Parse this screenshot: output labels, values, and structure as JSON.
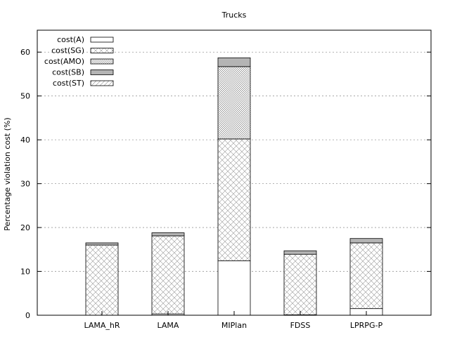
{
  "chart_data": {
    "type": "bar",
    "stacked": true,
    "title": "Trucks",
    "xlabel": "",
    "ylabel": "Percentage violation cost (%)",
    "ylim": [
      0,
      65
    ],
    "yticks": [
      0,
      10,
      20,
      30,
      40,
      50,
      60
    ],
    "grid": "horizontal dotted",
    "legend_position": "top-left",
    "categories": [
      "LAMA_hR",
      "LAMA",
      "MIPlan",
      "FDSS",
      "LPRPG-P"
    ],
    "series": [
      {
        "name": "cost(A)",
        "pattern": "blank",
        "values": [
          0.0,
          0.3,
          12.4,
          0.1,
          1.5
        ]
      },
      {
        "name": "cost(SG)",
        "pattern": "crosshatch",
        "values": [
          16.0,
          17.8,
          27.8,
          13.8,
          15.0
        ]
      },
      {
        "name": "cost(AMO)",
        "pattern": "finedots",
        "values": [
          0.0,
          0.0,
          16.5,
          0.0,
          0.0
        ]
      },
      {
        "name": "cost(SB)",
        "pattern": "gray",
        "values": [
          0.5,
          0.7,
          2.0,
          0.8,
          1.0
        ]
      },
      {
        "name": "cost(ST)",
        "pattern": "diagonal",
        "values": [
          0.0,
          0.0,
          0.0,
          0.0,
          0.0
        ]
      }
    ]
  }
}
